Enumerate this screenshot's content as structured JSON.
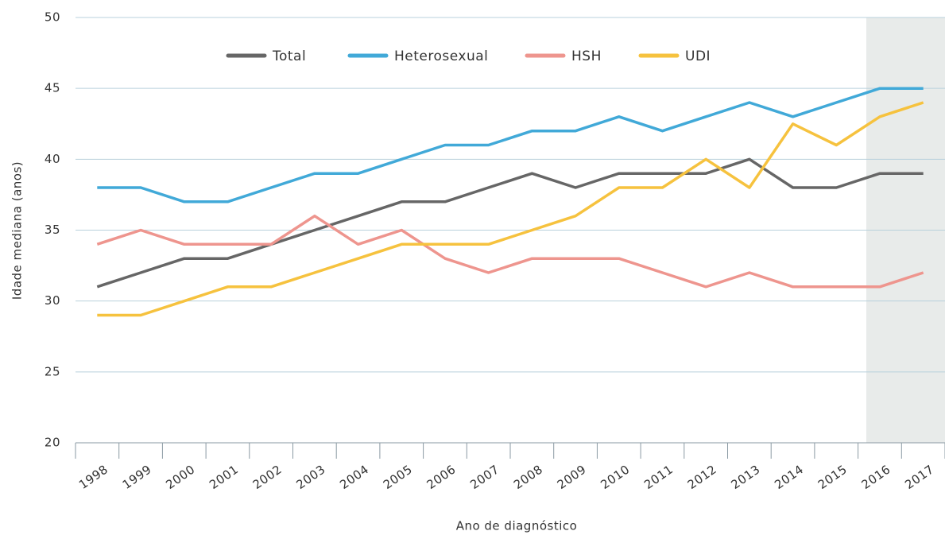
{
  "chart_data": {
    "type": "line",
    "x_label": "Ano de diagnóstico",
    "y_label": "Idade mediana (anos)",
    "categories": [
      "1998",
      "1999",
      "2000",
      "2001",
      "2002",
      "2003",
      "2004",
      "2005",
      "2006",
      "2007",
      "2008",
      "2009",
      "2010",
      "2011",
      "2012",
      "2013",
      "2014",
      "2015",
      "2016",
      "2017"
    ],
    "series": [
      {
        "name": "Total",
        "color": "#666666",
        "values": [
          31,
          32,
          33,
          33,
          34,
          35,
          36,
          37,
          37,
          38,
          39,
          38,
          39,
          39,
          39,
          40,
          38,
          38,
          39,
          39
        ]
      },
      {
        "name": "Heterosexual",
        "color": "#41a9d8",
        "values": [
          38,
          38,
          37,
          37,
          38,
          39,
          39,
          40,
          41,
          41,
          42,
          42,
          43,
          42,
          43,
          44,
          43,
          44,
          45,
          45
        ]
      },
      {
        "name": "HSH",
        "color": "#ee958e",
        "values": [
          34,
          35,
          34,
          34,
          34,
          36,
          34,
          35,
          33,
          32,
          33,
          33,
          33,
          32,
          31,
          32,
          31,
          31,
          31,
          32
        ]
      },
      {
        "name": "UDI",
        "color": "#f6c23e",
        "values": [
          29,
          29,
          30,
          31,
          31,
          32,
          33,
          34,
          34,
          34,
          35,
          36,
          38,
          38,
          40,
          38,
          42.5,
          41,
          43,
          44
        ]
      }
    ],
    "ylim": [
      20,
      50
    ],
    "yticks": [
      20,
      25,
      30,
      35,
      40,
      45,
      50
    ],
    "grid": true,
    "legend": "top"
  }
}
